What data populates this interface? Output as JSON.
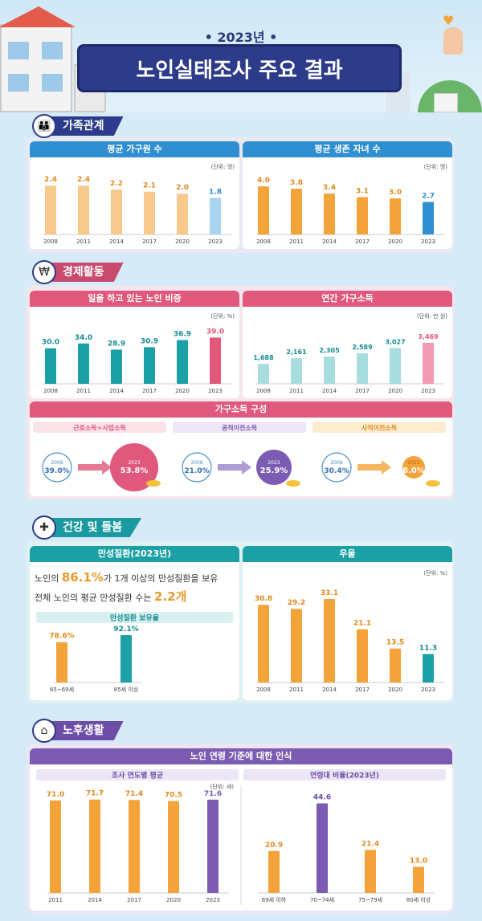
{
  "header": {
    "year": "• 2023년 •",
    "title": "노인실태조사 주요 결과"
  },
  "sections": {
    "family": "가족관계",
    "economy": "경제활동",
    "health": "건강 및 돌봄",
    "retirement": "노후생활"
  },
  "colors": {
    "navy": "#2c3b8a",
    "orange": "#f4a23a",
    "blue": "#2f8fd0",
    "teal": "#1ba0a5",
    "pink": "#e0587c",
    "purple": "#7c5cb2",
    "lightteal": "#a8dde0"
  },
  "chart_data": [
    {
      "id": "household",
      "type": "bar",
      "title": "평균 가구원 수",
      "unit": "(단위: 명)",
      "categories": [
        "2008",
        "2011",
        "2014",
        "2017",
        "2020",
        "2023"
      ],
      "values": [
        2.4,
        2.4,
        2.2,
        2.1,
        2.0,
        1.8
      ],
      "ylim": [
        0,
        2.6
      ]
    },
    {
      "id": "children",
      "type": "bar",
      "title": "평균 생존 자녀 수",
      "unit": "(단위: 명)",
      "categories": [
        "2008",
        "2011",
        "2014",
        "2017",
        "2020",
        "2023"
      ],
      "values": [
        4.0,
        3.8,
        3.4,
        3.1,
        3.0,
        2.7
      ],
      "ylim": [
        0,
        4.4
      ]
    },
    {
      "id": "working",
      "type": "bar",
      "title": "일을 하고 있는 노인 비중",
      "unit": "(단위: %)",
      "categories": [
        "2008",
        "2011",
        "2014",
        "2017",
        "2020",
        "2023"
      ],
      "values": [
        30.0,
        34.0,
        28.9,
        30.9,
        36.9,
        39.0
      ],
      "ylim": [
        0,
        42
      ]
    },
    {
      "id": "income",
      "type": "bar",
      "title": "연간 가구소득",
      "unit": "(단위: 만 원)",
      "categories": [
        "2008",
        "2011",
        "2014",
        "2017",
        "2020",
        "2023"
      ],
      "values": [
        1688,
        2161,
        2305,
        2589,
        3027,
        3469
      ],
      "ylim": [
        0,
        3800
      ]
    },
    {
      "id": "depression",
      "type": "bar",
      "title": "우울",
      "unit": "(단위: %)",
      "categories": [
        "2008",
        "2011",
        "2014",
        "2017",
        "2020",
        "2023"
      ],
      "values": [
        30.8,
        29.2,
        33.1,
        21.1,
        13.5,
        11.3
      ],
      "ylim": [
        0,
        35
      ]
    },
    {
      "id": "chronic",
      "type": "bar",
      "title": "만성질환 보유율",
      "categories": [
        "65~69세",
        "85세 이상"
      ],
      "values": [
        78.6,
        92.1
      ],
      "ylim": [
        0,
        100
      ]
    },
    {
      "id": "agebyyear",
      "type": "bar",
      "title": "조사 연도별 평균",
      "unit": "(단위: 세)",
      "categories": [
        "2011",
        "2014",
        "2017",
        "2020",
        "2023"
      ],
      "values": [
        71.0,
        71.7,
        71.4,
        70.5,
        71.6
      ],
      "ylim": [
        0,
        74
      ]
    },
    {
      "id": "agegroup",
      "type": "bar",
      "title": "연령대 비율(2023년)",
      "categories": [
        "69세 이하",
        "70~74세",
        "75~79세",
        "80세 이상"
      ],
      "values": [
        20.9,
        44.6,
        21.4,
        13.0
      ],
      "ylim": [
        0,
        48
      ]
    }
  ],
  "income_comp": {
    "title": "가구소득 구성",
    "items": [
      {
        "label": "근로소득+사업소득",
        "y_old": "2008",
        "v_old": "39.0%",
        "y_new": "2023",
        "v_new": "53.8%"
      },
      {
        "label": "공적이전소득",
        "y_old": "2008",
        "v_old": "21.0%",
        "y_new": "2023",
        "v_new": "25.9%"
      },
      {
        "label": "사적이전소득",
        "y_old": "2008",
        "v_old": "30.4%",
        "y_new": "2023",
        "v_new": "8.0%"
      }
    ]
  },
  "chronic_card": {
    "title": "만성질환(2023년)",
    "line1_pre": "노인의 ",
    "line1_val": "86.1%",
    "line1_post": "가 1개 이상의 만성질환을 보유",
    "line2_pre": "전체 노인의 평균 만성질환 수는 ",
    "line2_val": "2.2개"
  },
  "age_card": {
    "title": "노인 연령 기준에 대한 인식"
  }
}
